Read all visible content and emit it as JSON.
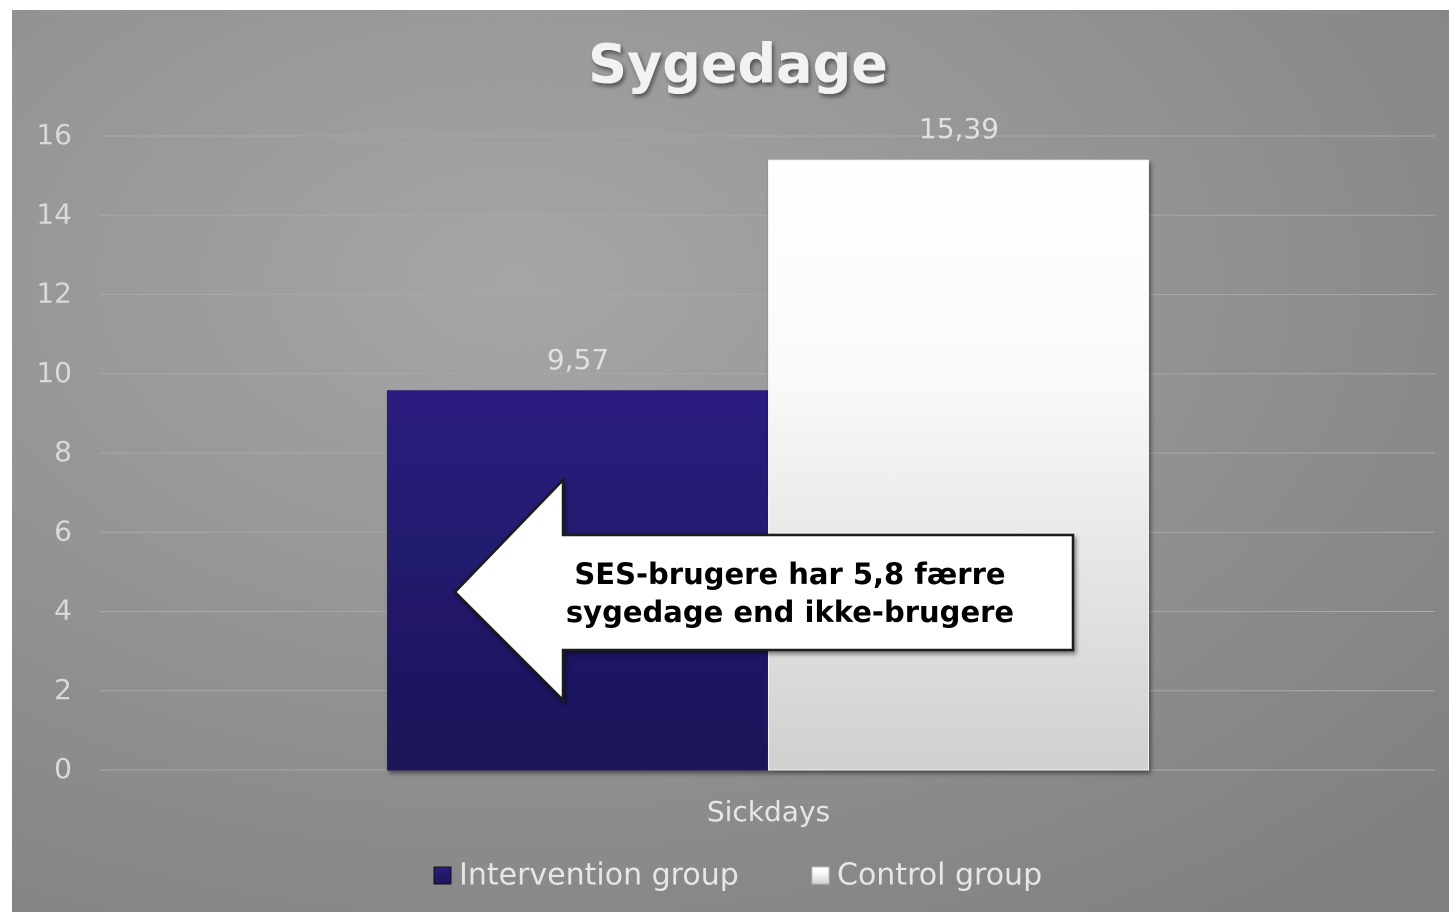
{
  "chart_data": {
    "type": "bar",
    "title": "Sygedage",
    "categories": [
      "Sickdays"
    ],
    "series": [
      {
        "name": "Intervention group",
        "color": "#221a6e",
        "values": [
          9.57
        ],
        "value_labels": [
          "9,57"
        ]
      },
      {
        "name": "Control group",
        "color": "#f2f2f2",
        "values": [
          15.39
        ],
        "value_labels": [
          "15,39"
        ]
      }
    ],
    "ylim": [
      0,
      16
    ],
    "yticks": [
      0,
      2,
      4,
      6,
      8,
      10,
      12,
      14,
      16
    ],
    "grid": true,
    "legend": "bottom",
    "annotation": [
      "SES-brugere har 5,8 færre",
      "sygedage end ikke-brugere"
    ]
  }
}
